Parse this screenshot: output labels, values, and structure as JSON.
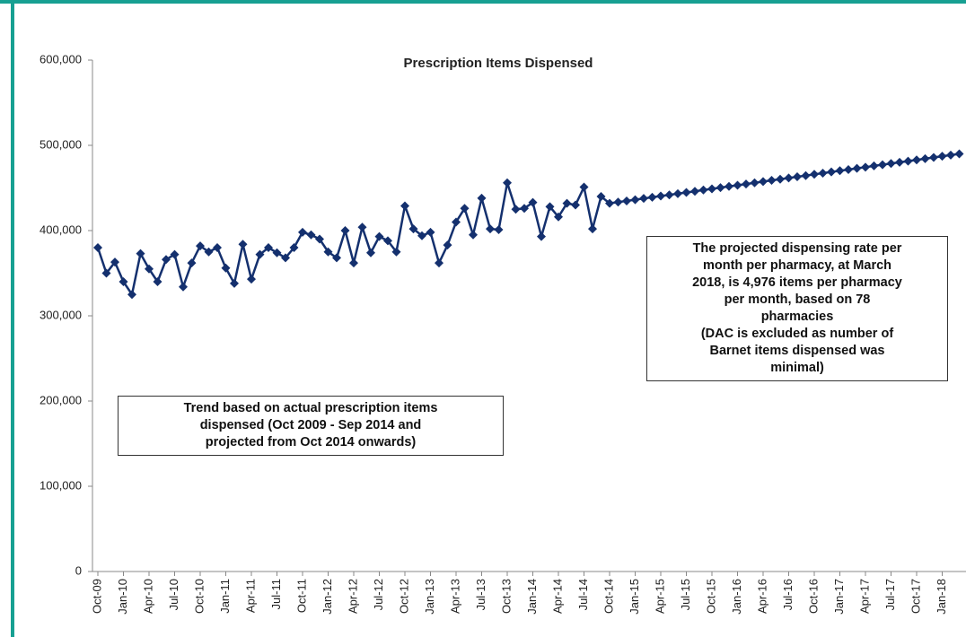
{
  "chart_data": {
    "type": "line",
    "title": "Prescription Items Dispensed",
    "categories": [
      "Oct-09",
      null,
      null,
      "Jan-10",
      null,
      null,
      "Apr-10",
      null,
      null,
      "Jul-10",
      null,
      null,
      "Oct-10",
      null,
      null,
      "Jan-11",
      null,
      null,
      "Apr-11",
      null,
      null,
      "Jul-11",
      null,
      null,
      "Oct-11",
      null,
      null,
      "Jan-12",
      null,
      null,
      "Apr-12",
      null,
      null,
      "Jul-12",
      null,
      null,
      "Oct-12",
      null,
      null,
      "Jan-13",
      null,
      null,
      "Apr-13",
      null,
      null,
      "Jul-13",
      null,
      null,
      "Oct-13",
      null,
      null,
      "Jan-14",
      null,
      null,
      "Apr-14",
      null,
      null,
      "Jul-14",
      null,
      null,
      "Oct-14",
      null,
      null,
      "Jan-15",
      null,
      null,
      "Apr-15",
      null,
      null,
      "Jul-15",
      null,
      null,
      "Oct-15",
      null,
      null,
      "Jan-16",
      null,
      null,
      "Apr-16",
      null,
      null,
      "Jul-16",
      null,
      null,
      "Oct-16",
      null,
      null,
      "Jan-17",
      null,
      null,
      "Apr-17",
      null,
      null,
      "Jul-17",
      null,
      null,
      "Oct-17",
      null,
      null,
      "Jan-18",
      null,
      null
    ],
    "series": [
      {
        "color": "#14306e",
        "values": [
          380000,
          350000,
          363000,
          340000,
          325000,
          373000,
          355000,
          340000,
          366000,
          372000,
          334000,
          362000,
          382000,
          375000,
          380000,
          356000,
          338000,
          384000,
          343000,
          372000,
          380000,
          374000,
          368000,
          380000,
          398000,
          395000,
          390000,
          375000,
          368000,
          400000,
          362000,
          404000,
          374000,
          393000,
          388000,
          375000,
          429000,
          402000,
          394000,
          398000,
          362000,
          383000,
          410000,
          426000,
          395000,
          438000,
          402000,
          401000,
          456000,
          425000,
          426000,
          433000,
          393000,
          428000,
          416000,
          432000,
          430000,
          451000,
          402000,
          440000,
          432000,
          433400,
          434800,
          436200,
          437700,
          439100,
          440500,
          441900,
          443300,
          444700,
          446100,
          447600,
          449000,
          450400,
          451800,
          453200,
          454600,
          456000,
          457500,
          458900,
          460300,
          461700,
          463100,
          464500,
          466000,
          467400,
          468800,
          470200,
          471600,
          473000,
          474400,
          475900,
          477300,
          478700,
          480100,
          481500,
          482900,
          484300,
          485800,
          487200,
          488600,
          490000
        ]
      }
    ],
    "ylim": [
      0,
      600000
    ],
    "yticks": [
      0,
      {
        "value": 100000,
        "label": "100,000"
      },
      {
        "value": 200000,
        "label": "200,000"
      },
      {
        "value": 300000,
        "label": "300,000"
      },
      {
        "value": 400000,
        "label": "400,000"
      },
      {
        "value": 500000,
        "label": "500,000"
      },
      {
        "value": 600000,
        "label": "600,000"
      }
    ],
    "grid": false,
    "annotations": [
      [
        "Trend based on actual prescription items",
        "dispensed (Oct 2009 - Sep 2014 and",
        "projected from Oct 2014 onwards)"
      ],
      [
        "The projected dispensing rate per",
        "month per pharmacy, at March",
        "2018, is 4,976 items per pharmacy",
        "per month, based on 78",
        "pharmacies",
        "(DAC is excluded as number of",
        "Barnet items dispensed was",
        "minimal)"
      ]
    ]
  }
}
